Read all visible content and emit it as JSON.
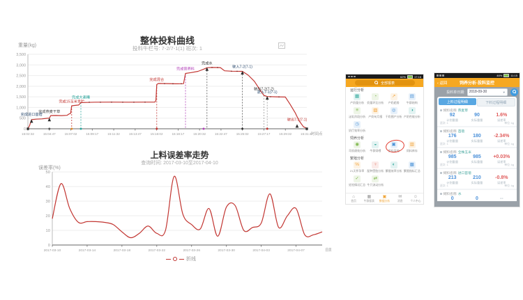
{
  "chart_data": [
    {
      "id": "feeding_curve",
      "type": "line",
      "title": "整体投料曲线",
      "subtitle": "投料牛栏号: 7-2/7-1(1)  班次: 1",
      "xlabel": "时间点",
      "ylabel": "重量(kg)",
      "ylim": [
        0,
        3500
      ],
      "y_ticks": [
        "0",
        "500",
        "1,000",
        "1,500",
        "2,000",
        "2,500",
        "3,000",
        "3,500"
      ],
      "x_ticks": [
        "15:02:32",
        "15:04:47",
        "15:07:02",
        "15:09:17",
        "15:11:32",
        "15:13:47",
        "15:16:02",
        "15:18:17",
        "15:20:32",
        "15:22:47",
        "15:25:02",
        "15:27:17",
        "15:29:32",
        "15:31:47"
      ],
      "line_color": "#c23531",
      "points": [
        [
          0,
          0
        ],
        [
          0.006,
          150
        ],
        [
          0.013,
          430
        ],
        [
          0.03,
          450
        ],
        [
          0.05,
          465
        ],
        [
          0.068,
          490
        ],
        [
          0.077,
          500
        ],
        [
          0.082,
          620
        ],
        [
          0.1,
          625
        ],
        [
          0.12,
          618
        ],
        [
          0.14,
          632
        ],
        [
          0.148,
          700
        ],
        [
          0.153,
          715
        ],
        [
          0.157,
          1080
        ],
        [
          0.17,
          1100
        ],
        [
          0.182,
          1115
        ],
        [
          0.19,
          1230
        ],
        [
          0.24,
          1248
        ],
        [
          0.3,
          1252
        ],
        [
          0.36,
          1248
        ],
        [
          0.42,
          1252
        ],
        [
          0.455,
          1255
        ],
        [
          0.459,
          1330
        ],
        [
          0.462,
          2080
        ],
        [
          0.468,
          2130
        ],
        [
          0.5,
          2122
        ],
        [
          0.53,
          2112
        ],
        [
          0.558,
          2120
        ],
        [
          0.565,
          2600
        ],
        [
          0.585,
          2640
        ],
        [
          0.61,
          2700
        ],
        [
          0.63,
          2800
        ],
        [
          0.642,
          2870
        ],
        [
          0.66,
          2882
        ],
        [
          0.69,
          2876
        ],
        [
          0.705,
          2725
        ],
        [
          0.73,
          2705
        ],
        [
          0.769,
          2700
        ],
        [
          0.79,
          2520
        ],
        [
          0.812,
          2230
        ],
        [
          0.832,
          1830
        ],
        [
          0.846,
          1570
        ],
        [
          0.858,
          1515
        ],
        [
          0.89,
          1502
        ],
        [
          0.923,
          1492
        ],
        [
          0.94,
          1150
        ],
        [
          0.958,
          760
        ],
        [
          0.972,
          380
        ],
        [
          0.988,
          90
        ],
        [
          1,
          25
        ]
      ],
      "dots": [
        [
          0.22,
          1248
        ],
        [
          0.26,
          1250
        ],
        [
          0.3,
          1252
        ],
        [
          0.34,
          1250
        ],
        [
          0.38,
          1250
        ],
        [
          0.42,
          1252
        ],
        [
          0.49,
          2122
        ],
        [
          0.52,
          2115
        ],
        [
          0.55,
          2118
        ],
        [
          0.66,
          2882
        ],
        [
          0.68,
          2879
        ],
        [
          0.73,
          2705
        ],
        [
          0.75,
          2702
        ],
        [
          0.87,
          1505
        ],
        [
          0.9,
          1500
        ]
      ],
      "annotations": [
        {
          "label": "完成进口苜蓿",
          "color": "#2b4b6f",
          "xf": 0.013,
          "kg": 430,
          "ly": 620,
          "marker": true
        },
        {
          "label": "完成燕麦干草",
          "color": "#444444",
          "xf": 0.077,
          "kg": 500,
          "ly": 760,
          "marker": true
        },
        {
          "label": "完成15玉米青贮",
          "color": "#c23531",
          "xf": 0.157,
          "kg": 1080,
          "ly": 1230,
          "vline": "#c23531"
        },
        {
          "label": "完成大麦糟",
          "color": "#27a39a",
          "xf": 0.19,
          "kg": 1230,
          "ly": 1420,
          "vline": "#27a39a"
        },
        {
          "label": "完成混合",
          "color": "#c23531",
          "xf": 0.462,
          "kg": 2080,
          "ly": 2260,
          "vline": "#c23531"
        },
        {
          "label": "完成营养料",
          "color": "#b13fb8",
          "xf": 0.565,
          "kg": 2600,
          "ly": 2760,
          "vline": "#b13fb8"
        },
        {
          "label": "完成水",
          "color": "#333333",
          "xf": 0.642,
          "kg": 2870,
          "ly": 3020,
          "vline": "#555555",
          "marker": true
        },
        {
          "label": "驶入7-2(7-1)",
          "color": "#2b4b6f",
          "xf": 0.769,
          "kg": 2700,
          "ly": 2860,
          "vline": "#555555",
          "marker": true
        },
        {
          "label": "驶出7-2(7-2)",
          "color": "#333333",
          "xf": 0.846,
          "kg": 1570,
          "ly": 1820,
          "vline": "#999999"
        },
        {
          "label": "驶入7-1(7-1)",
          "color": "#2b4b6f",
          "xf": 0.858,
          "kg": 1515,
          "ly": 1670,
          "vline": "#999999",
          "marker": true
        },
        {
          "label": "驶出7-1(7-1)",
          "color": "#c23531",
          "xf": 0.965,
          "kg": 200,
          "ly": 380,
          "marker": true
        }
      ],
      "axis_markers": [
        {
          "xf": 0,
          "color": "#333333",
          "shape": "s"
        },
        {
          "xf": 0.077,
          "color": "#555555",
          "shape": "c"
        },
        {
          "xf": 0.157,
          "color": "#e0882b",
          "shape": "c"
        },
        {
          "xf": 0.19,
          "color": "#27a39a",
          "shape": "c"
        },
        {
          "xf": 0.462,
          "color": "#c23531",
          "shape": "c"
        },
        {
          "xf": 0.63,
          "color": "#b13fb8",
          "shape": "c"
        },
        {
          "xf": 0.769,
          "color": "#333333",
          "shape": "c"
        },
        {
          "xf": 0.858,
          "color": "#c23531",
          "shape": "c"
        },
        {
          "xf": 1,
          "color": "#333333",
          "shape": "s"
        }
      ]
    },
    {
      "id": "error_rate_trend",
      "type": "line",
      "title": "上料误差率走势",
      "subtitle": "查询时间: 2017-03-10至2017-04-10",
      "xlabel": "日期",
      "ylabel": "误差率(%)",
      "ylim": [
        0,
        50
      ],
      "y_ticks": [
        "0",
        "10",
        "20",
        "30",
        "40",
        "50"
      ],
      "x_ticks": [
        "2017-03-10",
        "2017-03-14",
        "2017-03-18",
        "2017-03-22",
        "2017-03-26",
        "2017-03-30",
        "2017-04-03",
        "2017-04-07"
      ],
      "start_date": "2017-03-10",
      "legend": "折线",
      "legend_position": "bottom-center",
      "grid": true,
      "line_color": "#c23531",
      "values": [
        18,
        42,
        25,
        15.5,
        16,
        16,
        15.5,
        14,
        9,
        5,
        8,
        13,
        8,
        10,
        47,
        21,
        14,
        11,
        25,
        6,
        26,
        27,
        10,
        12,
        15,
        35,
        12,
        20,
        25,
        7,
        7,
        9
      ]
    }
  ],
  "phone1": {
    "statusbar": {
      "battery": "62%",
      "time": "17:16"
    },
    "search_placeholder": "全部报表",
    "sections": [
      {
        "title": "运行分析",
        "rows": [
          [
            {
              "label": "产奶量分析",
              "icon": "chart-bar",
              "color": "#2fa89b"
            },
            {
              "label": "奶量环比分析",
              "icon": "chart-pie",
              "color": "#7cb648"
            },
            {
              "label": "产奶趋势",
              "icon": "trend",
              "color": "#f2a33a"
            },
            {
              "label": "牛群结构",
              "icon": "grid",
              "color": "#4f95d8"
            }
          ],
          [
            {
              "label": "泌乳阶段分析",
              "icon": "layers",
              "color": "#7cb648"
            },
            {
              "label": "产奶旬月报",
              "icon": "calendar",
              "color": "#f2a33a"
            },
            {
              "label": "干奶围产分析",
              "icon": "target",
              "color": "#4f95d8"
            },
            {
              "label": "产奶性能分析",
              "icon": "gauge",
              "color": "#2fa89b"
            }
          ],
          [
            {
              "label": "奶厅效率分析",
              "icon": "clock",
              "color": "#4f95d8"
            }
          ]
        ]
      },
      {
        "title": "饲养分析",
        "rows": [
          [
            {
              "label": "司机绩效分析",
              "icon": "medal",
              "color": "#7cb648"
            },
            {
              "label": "牛群饲喂",
              "icon": "bowl",
              "color": "#2fa89b"
            },
            {
              "label": "投料监控",
              "icon": "monitor",
              "color": "#4f95d8",
              "circled": true
            },
            {
              "label": "饲料库存",
              "icon": "box",
              "color": "#f2a33a"
            }
          ]
        ]
      },
      {
        "title": "繁殖分析",
        "rows": [
          [
            {
              "label": "21天怀孕率",
              "icon": "percent",
              "color": "#f2a33a"
            },
            {
              "label": "配种受胎分析",
              "icon": "venus",
              "color": "#e06c5a"
            },
            {
              "label": "繁殖效率分析",
              "icon": "gauge2",
              "color": "#2fa89b"
            },
            {
              "label": "繁殖指标汇总",
              "icon": "chart2",
              "color": "#4f95d8"
            }
          ],
          [
            {
              "label": "妊检情况汇总",
              "icon": "check",
              "color": "#7cb648"
            },
            {
              "label": "牛只流动分析",
              "icon": "flow",
              "color": "#7cb648"
            }
          ]
        ]
      }
    ],
    "nav": [
      {
        "label": "首页",
        "icon": "home"
      },
      {
        "label": "牛群报表",
        "icon": "table"
      },
      {
        "label": "数据分析",
        "icon": "folder",
        "active": true
      },
      {
        "label": "消息",
        "icon": "mail"
      },
      {
        "label": "个人中心",
        "icon": "user"
      }
    ]
  },
  "phone2": {
    "statusbar": {
      "battery": "46%",
      "time": "11:15"
    },
    "header": {
      "back": "返回",
      "title": "饲养分析-投料监控"
    },
    "filter": {
      "label": "投料单日期:",
      "value": "2018-09-30"
    },
    "tabs": [
      {
        "label": "上料过程明细",
        "active": true
      },
      {
        "label": "下料过程明细",
        "active": false
      }
    ],
    "name_label": "饲料名称",
    "col_labels": [
      "计划重量",
      "实际重量",
      "误差率"
    ],
    "rows": [
      {
        "name": "燕麦草",
        "plan": "92",
        "actual": "90",
        "err": "1.6%"
      },
      {
        "name": "苜蓿",
        "plan": "176",
        "actual": "180",
        "err": "-2.34%"
      },
      {
        "name": "全株玉米",
        "plan": "985",
        "actual": "985",
        "err": "+0.03%"
      },
      {
        "name": "进口苜蓿",
        "plan": "213",
        "actual": "210",
        "err": "-0.8%"
      },
      {
        "name": "水",
        "plan": "0",
        "actual": "0",
        "err": "--"
      }
    ],
    "row_footer_left": "班次: 1",
    "row_footer_right": "单位: kg"
  }
}
